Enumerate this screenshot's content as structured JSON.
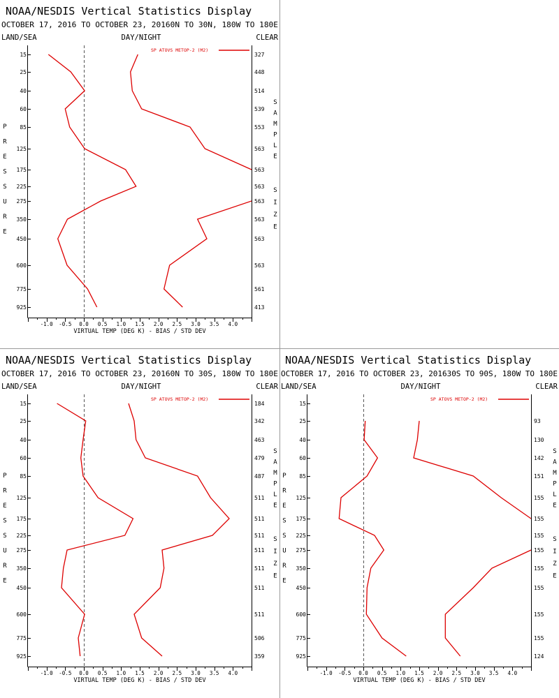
{
  "header": {
    "title": "NOAA/NESDIS Vertical Statistics Display",
    "date_range": "OCTOBER 17, 2016 TO OCTOBER 23, 2016"
  },
  "labels": {
    "land_sea": "LAND/SEA",
    "day_night": "DAY/NIGHT",
    "clear": "CLEAR",
    "pressure": "PRESSURE",
    "sample_size": "SAMPLE SIZE",
    "xlabel": "VIRTUAL TEMP (DEG K) - BIAS / STD DEV"
  },
  "colors": {
    "line": "#dd0000",
    "text": "#000000",
    "zero_line": "#555555"
  },
  "chart_data": [
    {
      "type": "line",
      "region": "0N TO 30N, 180W TO 180E",
      "legend": "SP ATOVS METOP-2 (M2)",
      "pressure_levels": [
        "15",
        "25",
        "40",
        "60",
        "85",
        "125",
        "175",
        "225",
        "275",
        "350",
        "450",
        "600",
        "775",
        "925"
      ],
      "xlim": [
        -1.5,
        4.5
      ],
      "x_ticks": [
        "-1.0",
        "-0.5",
        "0.0",
        "0.5",
        "1.0",
        "1.5",
        "2.0",
        "2.5",
        "3.0",
        "3.5",
        "4.0"
      ],
      "series": [
        {
          "name": "BIAS",
          "values": [
            -0.95,
            -0.35,
            0.02,
            -0.5,
            -0.38,
            0.02,
            1.12,
            1.4,
            0.45,
            -0.44,
            -0.7,
            -0.45,
            0.1,
            0.35
          ]
        },
        {
          "name": "STD DEV",
          "values": [
            1.45,
            1.25,
            1.3,
            1.55,
            2.85,
            3.25,
            4.5,
            null,
            4.5,
            3.05,
            3.3,
            2.3,
            2.15,
            2.65
          ]
        }
      ],
      "sample_size": [
        "327",
        "448",
        "514",
        "539",
        "553",
        "563",
        "563",
        "563",
        "563",
        "563",
        "563",
        "563",
        "561",
        "413"
      ]
    },
    {
      "type": "line",
      "region": "0N TO 30S, 180W TO 180E",
      "legend": "SP ATOVS METOP-2 (M2)",
      "pressure_levels": [
        "15",
        "25",
        "40",
        "60",
        "85",
        "125",
        "175",
        "225",
        "275",
        "350",
        "450",
        "600",
        "775",
        "925"
      ],
      "xlim": [
        -1.5,
        4.5
      ],
      "x_ticks": [
        "-1.0",
        "-0.5",
        "0.0",
        "0.5",
        "1.0",
        "1.5",
        "2.0",
        "2.5",
        "3.0",
        "3.5",
        "4.0"
      ],
      "series": [
        {
          "name": "BIAS",
          "values": [
            -0.72,
            0.05,
            -0.02,
            -0.08,
            -0.02,
            0.38,
            1.32,
            1.1,
            -0.45,
            -0.55,
            -0.6,
            0.02,
            -0.15,
            -0.1
          ]
        },
        {
          "name": "STD DEV",
          "values": [
            1.2,
            1.35,
            1.4,
            1.65,
            3.05,
            3.4,
            3.9,
            3.45,
            2.1,
            2.15,
            2.05,
            1.35,
            1.55,
            2.1
          ]
        }
      ],
      "sample_size": [
        "184",
        "342",
        "463",
        "479",
        "487",
        "511",
        "511",
        "511",
        "511",
        "511",
        "511",
        "511",
        "506",
        "359"
      ]
    },
    {
      "type": "line",
      "region": "30S TO 90S, 180W TO 180E",
      "legend": "SP ATOVS METOP-2 (M2)",
      "pressure_levels": [
        "15",
        "25",
        "40",
        "60",
        "85",
        "125",
        "175",
        "225",
        "275",
        "350",
        "450",
        "600",
        "775",
        "925"
      ],
      "xlim": [
        -1.5,
        4.5
      ],
      "x_ticks": [
        "-1.0",
        "-0.5",
        "0.0",
        "0.5",
        "1.0",
        "1.5",
        "2.0",
        "2.5",
        "3.0",
        "3.5",
        "4.0"
      ],
      "series": [
        {
          "name": "BIAS",
          "values": [
            null,
            0.05,
            0.02,
            0.38,
            0.1,
            -0.6,
            -0.65,
            0.3,
            0.55,
            0.2,
            0.1,
            0.08,
            0.5,
            1.15
          ]
        },
        {
          "name": "STD DEV",
          "values": [
            null,
            1.5,
            1.45,
            1.35,
            2.95,
            3.7,
            4.5,
            null,
            4.5,
            3.45,
            2.95,
            2.2,
            2.2,
            2.6
          ]
        }
      ],
      "sample_size": [
        "",
        "93",
        "130",
        "142",
        "151",
        "155",
        "155",
        "155",
        "155",
        "155",
        "155",
        "155",
        "155",
        "124"
      ]
    }
  ]
}
